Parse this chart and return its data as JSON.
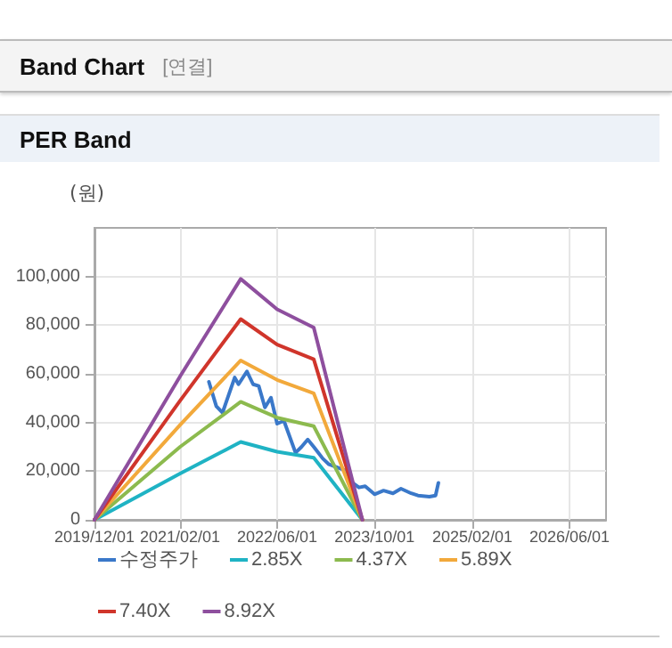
{
  "chart_data": {
    "type": "line",
    "title": "Band Chart",
    "subtitle": "[연결]",
    "annotations": [
      "PER Band"
    ],
    "ylabel": "(원)",
    "x": [
      "2019-12-01",
      "2021-02-01",
      "2021-12-01",
      "2022-06-01",
      "2022-12-01",
      "2023-08-01"
    ],
    "series": [
      {
        "name": "수정주가",
        "color": "#3a78c9",
        "x": [
          "2021-06-25",
          "2021-08-01",
          "2021-09-01",
          "2021-11-01",
          "2021-11-20",
          "2022-01-01",
          "2022-02-01",
          "2022-03-01",
          "2022-04-01",
          "2022-05-01",
          "2022-06-01",
          "2022-07-05",
          "2022-09-01",
          "2022-10-01",
          "2022-11-01",
          "2022-12-01",
          "2023-01-15",
          "2023-02-15",
          "2023-05-01",
          "2023-06-05",
          "2023-07-15",
          "2023-08-15",
          "2023-10-01",
          "2023-11-15",
          "2024-01-01",
          "2024-02-10",
          "2024-04-01",
          "2024-05-05",
          "2024-07-01",
          "2024-08-01",
          "2024-08-15"
        ],
        "values": [
          56700,
          46700,
          44000,
          58500,
          55700,
          61000,
          55700,
          55000,
          46200,
          50200,
          39500,
          40700,
          27600,
          30000,
          33000,
          30000,
          25200,
          22800,
          20500,
          15700,
          13300,
          13800,
          10500,
          12000,
          10900,
          12800,
          10900,
          10000,
          9500,
          10000,
          15200
        ]
      },
      {
        "name": "2.85X",
        "color": "#1fb3c4",
        "values": [
          0,
          19000,
          32000,
          28000,
          25500,
          0
        ]
      },
      {
        "name": "4.37X",
        "color": "#8cba4e",
        "values": [
          0,
          30000,
          48500,
          42000,
          38500,
          0
        ]
      },
      {
        "name": "5.89X",
        "color": "#f2a93b",
        "values": [
          0,
          39000,
          65500,
          57500,
          52000,
          0
        ]
      },
      {
        "name": "7.40X",
        "color": "#d0352b",
        "values": [
          0,
          49000,
          82500,
          72000,
          66000,
          0
        ]
      },
      {
        "name": "8.92X",
        "color": "#8e4f9e",
        "values": [
          0,
          59000,
          99000,
          86500,
          79000,
          0
        ]
      }
    ],
    "xlim": [
      "2019-12-01",
      "2026-12-01"
    ],
    "xticks": [
      {
        "value": "2019-12-01",
        "label": "2019/12/01"
      },
      {
        "value": "2021-02-01",
        "label": "2021/02/01"
      },
      {
        "value": "2022-06-01",
        "label": "2022/06/01"
      },
      {
        "value": "2023-10-01",
        "label": "2023/10/01"
      },
      {
        "value": "2025-02-01",
        "label": "2025/02/01"
      },
      {
        "value": "2026-06-01",
        "label": "2026/06/01"
      }
    ],
    "ylim": [
      0,
      120000
    ],
    "yticks": [
      {
        "value": 0,
        "label": "0"
      },
      {
        "value": 20000,
        "label": "20,000"
      },
      {
        "value": 40000,
        "label": "40,000"
      },
      {
        "value": 60000,
        "label": "60,000"
      },
      {
        "value": 80000,
        "label": "80,000"
      },
      {
        "value": 100000,
        "label": "100,000"
      }
    ],
    "grid": true,
    "legend": "bottom",
    "marker": "none",
    "line_style": "solid"
  }
}
